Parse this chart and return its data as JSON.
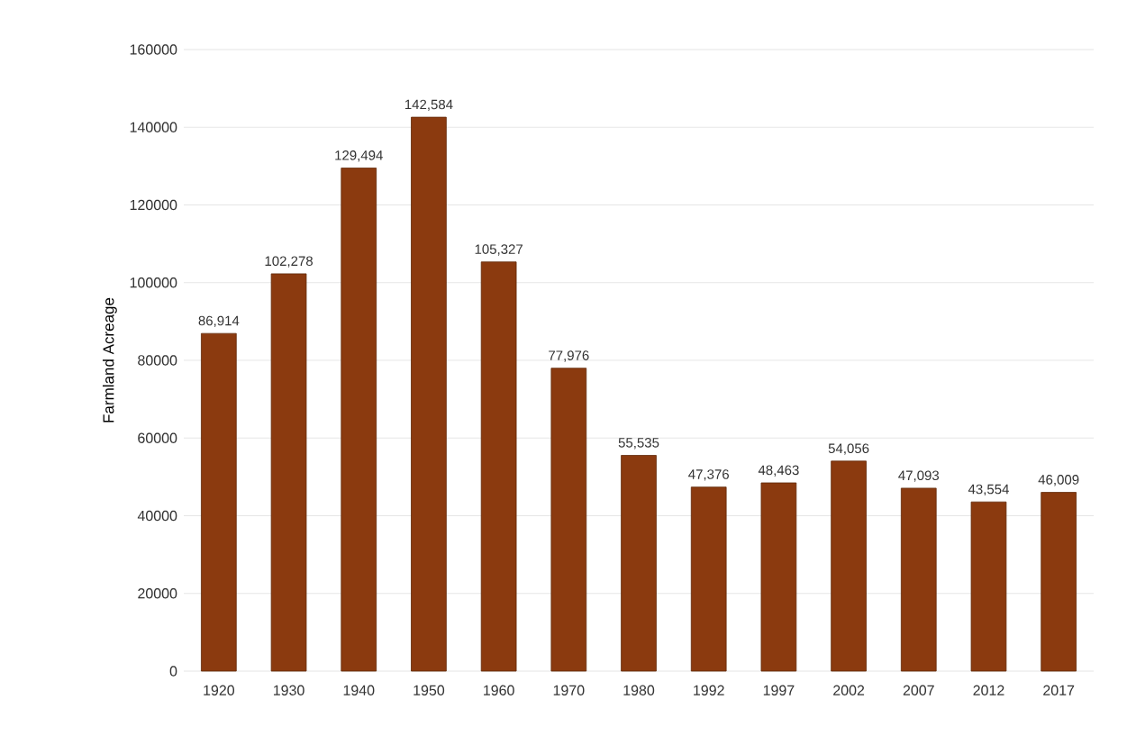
{
  "chart_data": {
    "type": "bar",
    "ylabel": "Farmland Acreage",
    "categories": [
      "1920",
      "1930",
      "1940",
      "1950",
      "1960",
      "1970",
      "1980",
      "1992",
      "1997",
      "2002",
      "2007",
      "2012",
      "2017"
    ],
    "values": [
      86914,
      102278,
      129494,
      142584,
      105327,
      77976,
      55535,
      47376,
      48463,
      54056,
      47093,
      43554,
      46009
    ],
    "value_labels": [
      "86,914",
      "102,278",
      "129,494",
      "142,584",
      "105,327",
      "77,976",
      "55,535",
      "47,376",
      "48,463",
      "54,056",
      "47,093",
      "43,554",
      "46,009"
    ],
    "color": "#8b3a0f",
    "ylim": [
      0,
      160000
    ],
    "yticks": [
      0,
      20000,
      40000,
      60000,
      80000,
      100000,
      120000,
      140000,
      160000
    ],
    "grid": "y"
  }
}
